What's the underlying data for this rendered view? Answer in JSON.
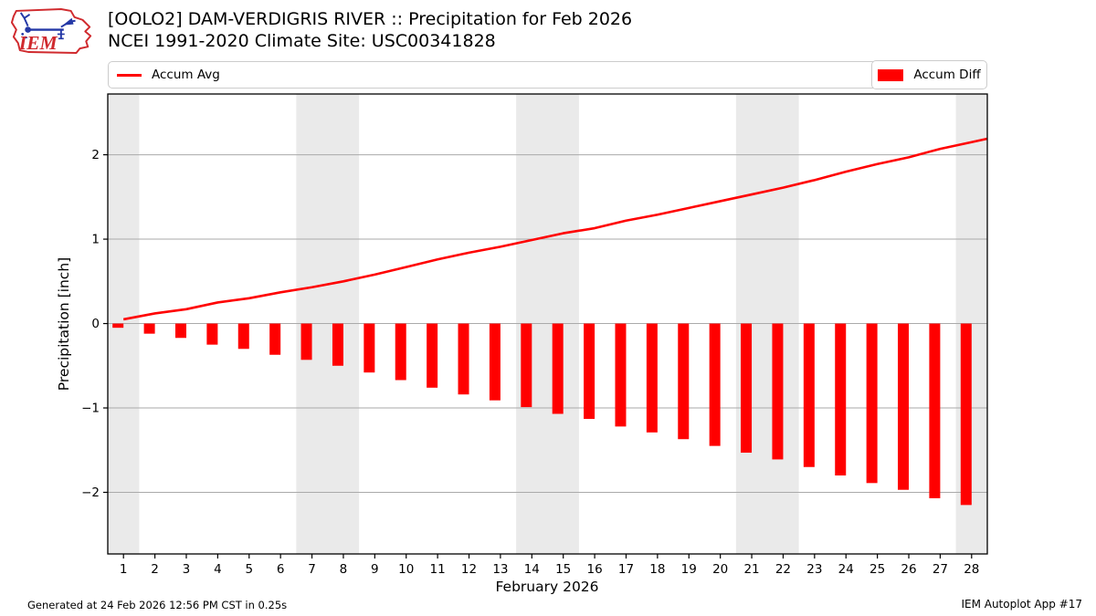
{
  "header": {
    "title_line1": "[OOLO2] DAM-VERDIGRIS RIVER :: Precipitation for Feb 2026",
    "title_line2": "NCEI 1991-2020 Climate Site: USC00341828",
    "logo_text": "IEM"
  },
  "legend": {
    "avg_label": "Accum Avg",
    "diff_label": "Accum Diff"
  },
  "footer": {
    "generated": "Generated at 24 Feb 2026 12:56 PM CST in 0.25s",
    "app": "IEM Autoplot App #17"
  },
  "colors": {
    "accent_red": "#ff0000",
    "weekend_band": "#eaeaea",
    "gridline": "#aaaaaa",
    "axis": "#000000",
    "legend_border": "#cccccc",
    "logo_red": "#d02a2e",
    "logo_blue": "#2438a6"
  },
  "chart_data": {
    "type": "line+bar",
    "title": "[OOLO2] DAM-VERDIGRIS RIVER :: Precipitation for Feb 2026",
    "subtitle": "NCEI 1991-2020 Climate Site: USC00341828",
    "xlabel": "February 2026",
    "ylabel": "Precipitation [inch]",
    "x": [
      1,
      2,
      3,
      4,
      5,
      6,
      7,
      8,
      9,
      10,
      11,
      12,
      13,
      14,
      15,
      16,
      17,
      18,
      19,
      20,
      21,
      22,
      23,
      24,
      25,
      26,
      27,
      28
    ],
    "series": [
      {
        "name": "Accum Avg",
        "type": "line",
        "color": "#ff0000",
        "values": [
          0.05,
          0.12,
          0.17,
          0.25,
          0.3,
          0.37,
          0.43,
          0.5,
          0.58,
          0.67,
          0.76,
          0.84,
          0.91,
          0.99,
          1.07,
          1.13,
          1.22,
          1.29,
          1.37,
          1.45,
          1.53,
          1.61,
          1.7,
          1.8,
          1.89,
          1.97,
          2.07,
          2.15
        ]
      },
      {
        "name": "Accum Diff",
        "type": "bar",
        "color": "#ff0000",
        "values": [
          -0.05,
          -0.12,
          -0.17,
          -0.25,
          -0.3,
          -0.37,
          -0.43,
          -0.5,
          -0.58,
          -0.67,
          -0.76,
          -0.84,
          -0.91,
          -0.99,
          -1.07,
          -1.13,
          -1.22,
          -1.29,
          -1.37,
          -1.45,
          -1.53,
          -1.61,
          -1.7,
          -1.8,
          -1.89,
          -1.97,
          -2.07,
          -2.15
        ]
      }
    ],
    "line_extension": {
      "x": 28.5,
      "value": 2.19
    },
    "xlim": [
      0.5,
      28.5
    ],
    "ylim": [
      -2.73,
      2.72
    ],
    "yticks": [
      -2,
      -1,
      0,
      1,
      2
    ],
    "xticks": [
      1,
      2,
      3,
      4,
      5,
      6,
      7,
      8,
      9,
      10,
      11,
      12,
      13,
      14,
      15,
      16,
      17,
      18,
      19,
      20,
      21,
      22,
      23,
      24,
      25,
      26,
      27,
      28
    ],
    "weekend_bands": [
      [
        0.5,
        1.5
      ],
      [
        6.5,
        8.5
      ],
      [
        13.5,
        15.5
      ],
      [
        20.5,
        22.5
      ],
      [
        27.5,
        28.5
      ]
    ],
    "grid": "horizontal",
    "legend_position": "top"
  }
}
